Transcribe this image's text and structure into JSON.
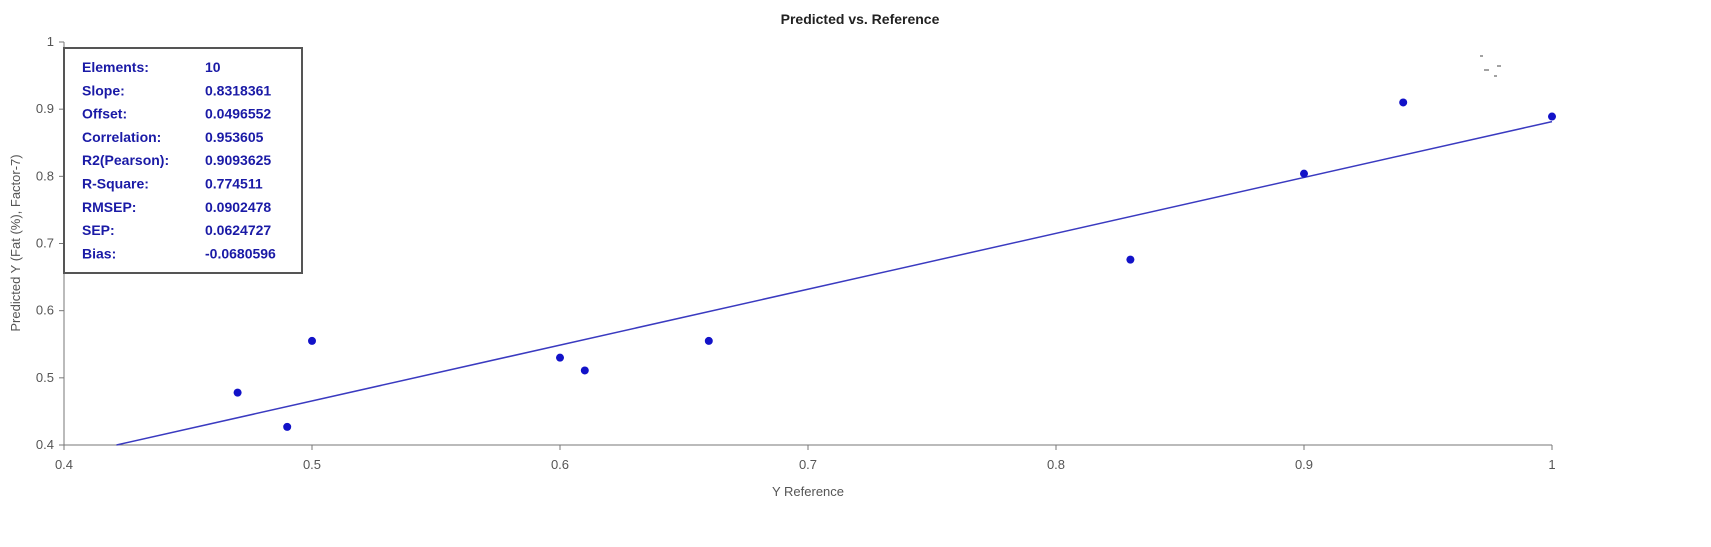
{
  "chart_data": {
    "type": "scatter",
    "title": "Predicted vs. Reference",
    "xlabel": "Y Reference",
    "ylabel": "Predicted Y (Fat (%), Factor-7)",
    "xlim": [
      0.4,
      1.0
    ],
    "ylim": [
      0.4,
      1.0
    ],
    "xticks": [
      "0.4",
      "0.5",
      "0.6",
      "0.7",
      "0.8",
      "0.9",
      "1"
    ],
    "yticks": [
      "0.4",
      "0.5",
      "0.6",
      "0.7",
      "0.8",
      "0.9",
      "1"
    ],
    "grid": false,
    "points": [
      {
        "x": 0.47,
        "y": 0.478
      },
      {
        "x": 0.49,
        "y": 0.427
      },
      {
        "x": 0.5,
        "y": 0.555
      },
      {
        "x": 0.6,
        "y": 0.53
      },
      {
        "x": 0.61,
        "y": 0.511
      },
      {
        "x": 0.66,
        "y": 0.555
      },
      {
        "x": 0.83,
        "y": 0.676
      },
      {
        "x": 0.9,
        "y": 0.804
      },
      {
        "x": 0.94,
        "y": 0.91
      },
      {
        "x": 1.0,
        "y": 0.889
      }
    ],
    "fit_line": {
      "slope": 0.8318361,
      "offset": 0.0496552
    },
    "stats": [
      {
        "label": "Elements:",
        "value": "10"
      },
      {
        "label": "Slope:",
        "value": "0.8318361"
      },
      {
        "label": "Offset:",
        "value": "0.0496552"
      },
      {
        "label": "Correlation:",
        "value": "0.953605"
      },
      {
        "label": "R2(Pearson):",
        "value": "0.9093625"
      },
      {
        "label": "R-Square:",
        "value": "0.774511"
      },
      {
        "label": "RMSEP:",
        "value": "0.0902478"
      },
      {
        "label": "SEP:",
        "value": "0.0624727"
      },
      {
        "label": "Bias:",
        "value": "-0.0680596"
      }
    ],
    "colors": {
      "point": "#1212c8",
      "line": "#3a3ac0",
      "axis": "#777777",
      "stats_text": "#1a1aa6",
      "stats_border": "#555555"
    }
  }
}
